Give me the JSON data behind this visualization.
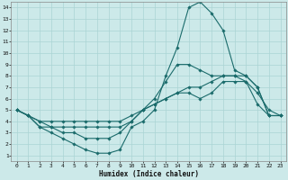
{
  "xlabel": "Humidex (Indice chaleur)",
  "ylabel": "",
  "xlim": [
    -0.5,
    23.5
  ],
  "ylim": [
    0.5,
    14.5
  ],
  "xticks": [
    0,
    1,
    2,
    3,
    4,
    5,
    6,
    7,
    8,
    9,
    10,
    11,
    12,
    13,
    14,
    15,
    16,
    17,
    18,
    19,
    20,
    21,
    22,
    23
  ],
  "yticks": [
    1,
    2,
    3,
    4,
    5,
    6,
    7,
    8,
    9,
    10,
    11,
    12,
    13,
    14
  ],
  "bg_color": "#cce9e9",
  "line_color": "#1a6b6b",
  "grid_color": "#aad4d4",
  "lines": [
    {
      "x": [
        0,
        1,
        2,
        3,
        4,
        5,
        6,
        7,
        8,
        9,
        10,
        11,
        12,
        13,
        14,
        15,
        16,
        17,
        18,
        19,
        20,
        21,
        22,
        23
      ],
      "y": [
        5.0,
        4.5,
        4.0,
        4.0,
        4.0,
        4.0,
        4.0,
        4.0,
        4.0,
        4.0,
        4.5,
        5.0,
        5.5,
        6.0,
        6.5,
        7.0,
        7.0,
        7.5,
        8.0,
        8.0,
        7.5,
        5.5,
        4.5,
        4.5
      ]
    },
    {
      "x": [
        0,
        1,
        2,
        3,
        4,
        5,
        6,
        7,
        8,
        9,
        10,
        11,
        12,
        13,
        14,
        15,
        16,
        17,
        18,
        19,
        20,
        21,
        22,
        23
      ],
      "y": [
        5.0,
        4.5,
        4.0,
        3.5,
        3.5,
        3.5,
        3.5,
        3.5,
        3.5,
        3.5,
        4.0,
        5.0,
        5.5,
        6.0,
        6.5,
        6.5,
        6.0,
        6.5,
        7.5,
        7.5,
        7.5,
        6.5,
        5.0,
        4.5
      ]
    },
    {
      "x": [
        0,
        1,
        2,
        3,
        4,
        5,
        6,
        7,
        8,
        9,
        10,
        11,
        12,
        13,
        14,
        15,
        16,
        17,
        18,
        19,
        20,
        21,
        22,
        23
      ],
      "y": [
        5.0,
        4.5,
        3.5,
        3.5,
        3.0,
        3.0,
        2.5,
        2.5,
        2.5,
        3.0,
        4.0,
        5.0,
        6.0,
        7.5,
        9.0,
        9.0,
        8.5,
        8.0,
        8.0,
        8.0,
        8.0,
        7.0,
        4.5,
        4.5
      ]
    },
    {
      "x": [
        0,
        1,
        2,
        3,
        4,
        5,
        6,
        7,
        8,
        9,
        10,
        11,
        12,
        13,
        14,
        15,
        16,
        17,
        18,
        19,
        20,
        21,
        22,
        23
      ],
      "y": [
        5.0,
        4.5,
        3.5,
        3.0,
        2.5,
        2.0,
        1.5,
        1.2,
        1.2,
        1.5,
        3.5,
        4.0,
        5.0,
        8.0,
        10.5,
        14.0,
        14.5,
        13.5,
        12.0,
        8.5,
        8.0,
        7.0,
        4.5,
        4.5
      ]
    }
  ]
}
